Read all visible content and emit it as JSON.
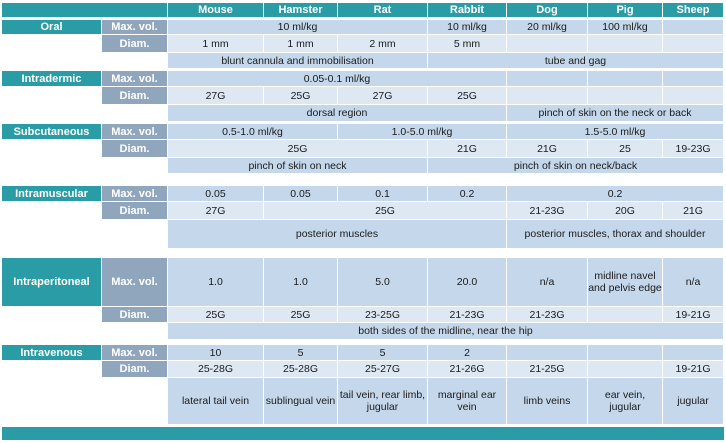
{
  "species": [
    "Mouse",
    "Hamster",
    "Rat",
    "Rabbit",
    "Dog",
    "Pig",
    "Sheep"
  ],
  "sections": [
    {
      "route": "Oral",
      "rows": [
        {
          "label": "Max. vol.",
          "cells": [
            {
              "text": "10 ml/kg",
              "span": 3
            },
            {
              "text": "10 ml/kg",
              "span": 1
            },
            {
              "text": "20 ml/kg",
              "span": 1
            },
            {
              "text": "100 ml/kg",
              "span": 1
            },
            {
              "text": "",
              "span": 1
            }
          ]
        },
        {
          "label": "Diam.",
          "cells": [
            {
              "text": "1 mm",
              "span": 1
            },
            {
              "text": "1 mm",
              "span": 1
            },
            {
              "text": "2 mm",
              "span": 1
            },
            {
              "text": "5 mm",
              "span": 1
            },
            {
              "text": "",
              "span": 1
            },
            {
              "text": "",
              "span": 1
            },
            {
              "text": "",
              "span": 1
            }
          ]
        },
        {
          "label": "",
          "cells": [
            {
              "text": "blunt cannula and immobilisation",
              "span": 3
            },
            {
              "text": "tube and gag",
              "span": 4
            }
          ]
        }
      ]
    },
    {
      "route": "Intradermic",
      "rows": [
        {
          "label": "Max. vol.",
          "cells": [
            {
              "text": "0.05-0.1 ml/kg",
              "span": 4
            },
            {
              "text": "",
              "span": 1
            },
            {
              "text": "",
              "span": 1
            },
            {
              "text": "",
              "span": 1
            }
          ]
        },
        {
          "label": "Diam.",
          "cells": [
            {
              "text": "27G",
              "span": 1
            },
            {
              "text": "25G",
              "span": 1
            },
            {
              "text": "27G",
              "span": 1
            },
            {
              "text": "25G",
              "span": 1
            },
            {
              "text": "",
              "span": 1
            },
            {
              "text": "",
              "span": 1
            },
            {
              "text": "",
              "span": 1
            }
          ]
        },
        {
          "label": "",
          "cells": [
            {
              "text": "dorsal region",
              "span": 4
            },
            {
              "text": "pinch of skin on the neck or back",
              "span": 3
            }
          ]
        }
      ]
    },
    {
      "route": "Subcutaneous",
      "rows": [
        {
          "label": "Max. vol.",
          "cells": [
            {
              "text": "0.5-1.0 ml/kg",
              "span": 2
            },
            {
              "text": "1.0-5.0 ml/kg",
              "span": 2
            },
            {
              "text": "1.5-5.0 ml/kg",
              "span": 3
            }
          ]
        },
        {
          "label": "Diam.",
          "cells": [
            {
              "text": "25G",
              "span": 3
            },
            {
              "text": "21G",
              "span": 1
            },
            {
              "text": "21G",
              "span": 1
            },
            {
              "text": "25",
              "span": 1
            },
            {
              "text": "19-23G",
              "span": 1
            }
          ]
        },
        {
          "label": "",
          "cells": [
            {
              "text": "pinch of skin on neck",
              "span": 3
            },
            {
              "text": "pinch of skin on neck/back",
              "span": 4
            }
          ]
        }
      ]
    },
    {
      "route": "Intramuscular",
      "rows": [
        {
          "label": "Max. vol.",
          "cells": [
            {
              "text": "0.05",
              "span": 1
            },
            {
              "text": "0.05",
              "span": 1
            },
            {
              "text": "0.1",
              "span": 1
            },
            {
              "text": "0.2",
              "span": 1
            },
            {
              "text": "0.2",
              "span": 3
            }
          ]
        },
        {
          "label": "Diam.",
          "cells": [
            {
              "text": "27G",
              "span": 1
            },
            {
              "text": "25G",
              "span": 3
            },
            {
              "text": "21-23G",
              "span": 1
            },
            {
              "text": "20G",
              "span": 1
            },
            {
              "text": "21G",
              "span": 1
            }
          ]
        },
        {
          "label": "",
          "cells": [
            {
              "text": "posterior muscles",
              "span": 4
            },
            {
              "text": "posterior muscles, thorax and shoulder",
              "span": 3
            }
          ]
        }
      ]
    },
    {
      "route": "Intraperitoneal",
      "rows": [
        {
          "label": "Max. vol.",
          "cells": [
            {
              "text": "1.0",
              "span": 1
            },
            {
              "text": "1.0",
              "span": 1
            },
            {
              "text": "5.0",
              "span": 1
            },
            {
              "text": "20.0",
              "span": 1
            },
            {
              "text": "n/a",
              "span": 1
            },
            {
              "text": "midline navel and pelvis edge",
              "span": 1
            },
            {
              "text": "n/a",
              "span": 1
            }
          ]
        },
        {
          "label": "Diam.",
          "cells": [
            {
              "text": "25G",
              "span": 1
            },
            {
              "text": "25G",
              "span": 1
            },
            {
              "text": "23-25G",
              "span": 1
            },
            {
              "text": "21-23G",
              "span": 1
            },
            {
              "text": "21-23G",
              "span": 1
            },
            {
              "text": "",
              "span": 1
            },
            {
              "text": "19-21G",
              "span": 1
            }
          ]
        },
        {
          "label": "",
          "cells": [
            {
              "text": "both sides of the midline, near the hip",
              "span": 7
            }
          ]
        }
      ]
    },
    {
      "route": "Intravenous",
      "rows": [
        {
          "label": "Max. vol.",
          "cells": [
            {
              "text": "10",
              "span": 1
            },
            {
              "text": "5",
              "span": 1
            },
            {
              "text": "5",
              "span": 1
            },
            {
              "text": "2",
              "span": 1
            },
            {
              "text": "",
              "span": 1
            },
            {
              "text": "",
              "span": 1
            },
            {
              "text": "",
              "span": 1
            }
          ]
        },
        {
          "label": "Diam.",
          "cells": [
            {
              "text": "25-28G",
              "span": 1
            },
            {
              "text": "25-28G",
              "span": 1
            },
            {
              "text": "25-27G",
              "span": 1
            },
            {
              "text": "21-26G",
              "span": 1
            },
            {
              "text": "21-25G",
              "span": 1
            },
            {
              "text": "",
              "span": 1
            },
            {
              "text": "19-21G",
              "span": 1
            }
          ]
        },
        {
          "label": "",
          "cells": [
            {
              "text": "lateral tail vein",
              "span": 1
            },
            {
              "text": "sublingual vein",
              "span": 1
            },
            {
              "text": "tail vein, rear limb, jugular",
              "span": 1
            },
            {
              "text": "marginal ear vein",
              "span": 1
            },
            {
              "text": "limb veins",
              "span": 1
            },
            {
              "text": "ear vein, jugular",
              "span": 1
            },
            {
              "text": "jugular",
              "span": 1
            }
          ]
        }
      ]
    }
  ]
}
